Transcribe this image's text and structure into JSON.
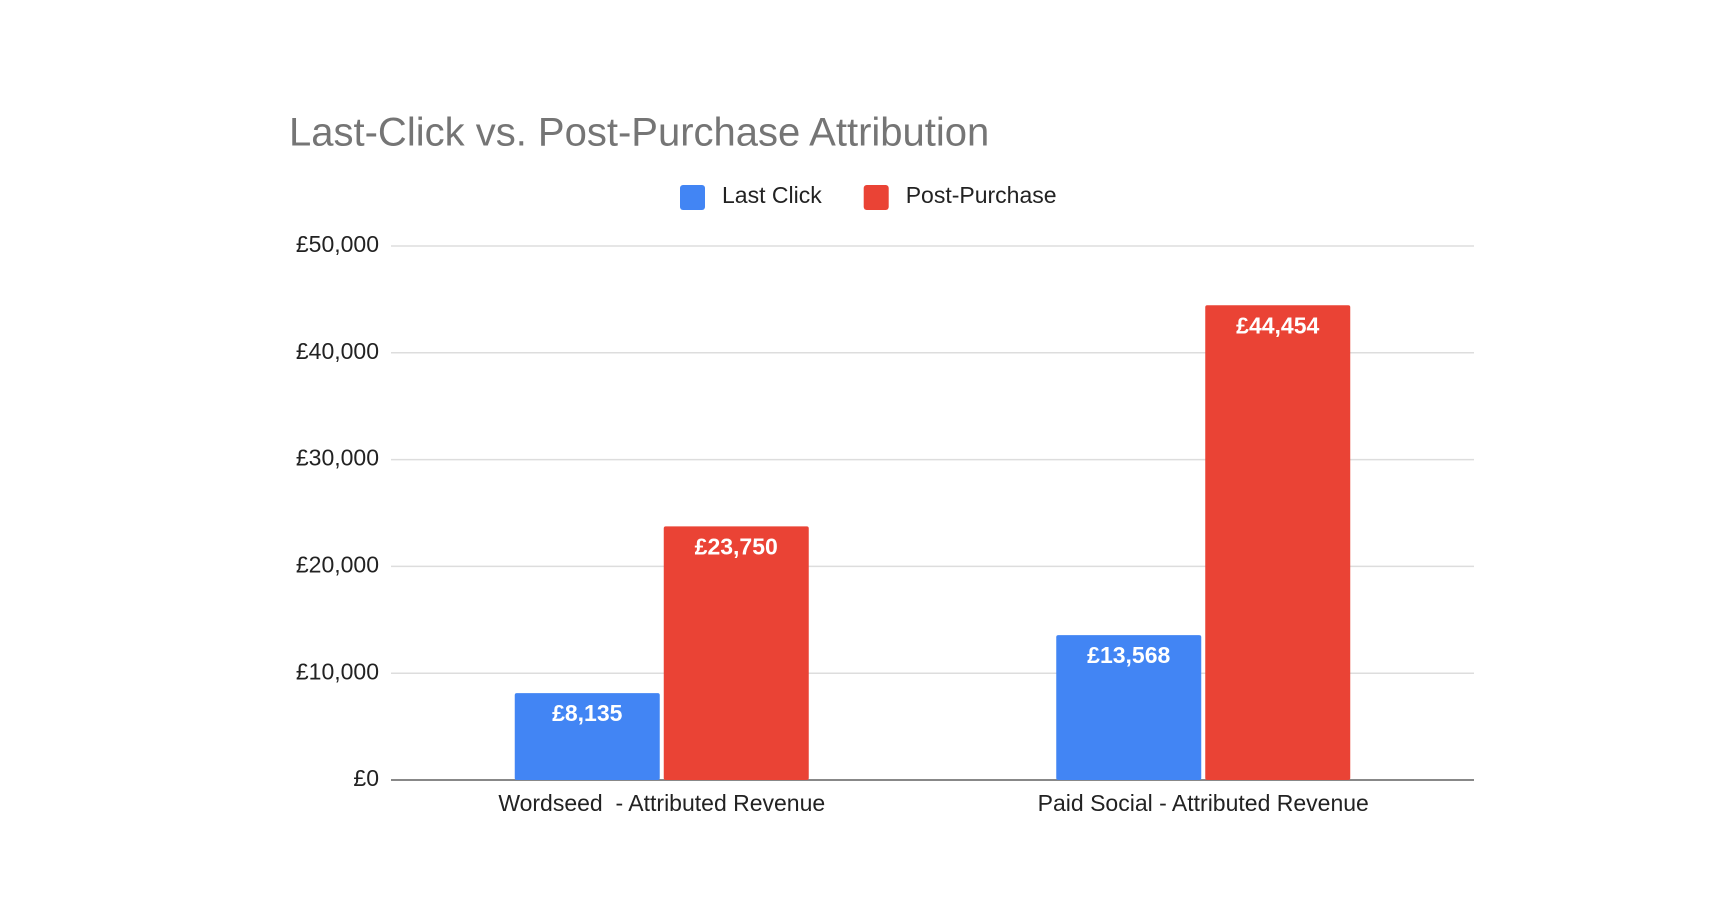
{
  "chart_data": {
    "type": "bar",
    "title": "Last-Click vs. Post-Purchase Attribution",
    "categories": [
      "Wordseed  - Attributed Revenue",
      "Paid Social - Attributed Revenue"
    ],
    "series": [
      {
        "name": "Last Click",
        "color": "#4285f4",
        "values": [
          8135,
          13568
        ],
        "value_labels": [
          "£8,135",
          "£13,568"
        ]
      },
      {
        "name": "Post-Purchase",
        "color": "#ea4335",
        "values": [
          23750,
          44454
        ],
        "value_labels": [
          "£23,750",
          "£44,454"
        ]
      }
    ],
    "ylim": [
      0,
      50000
    ],
    "yticks": [
      {
        "value": 0,
        "label": "£0"
      },
      {
        "value": 10000,
        "label": "£10,000"
      },
      {
        "value": 20000,
        "label": "£20,000"
      },
      {
        "value": 30000,
        "label": "£30,000"
      },
      {
        "value": 40000,
        "label": "£40,000"
      },
      {
        "value": 50000,
        "label": "£50,000"
      }
    ],
    "grid": true,
    "legend": "top"
  }
}
